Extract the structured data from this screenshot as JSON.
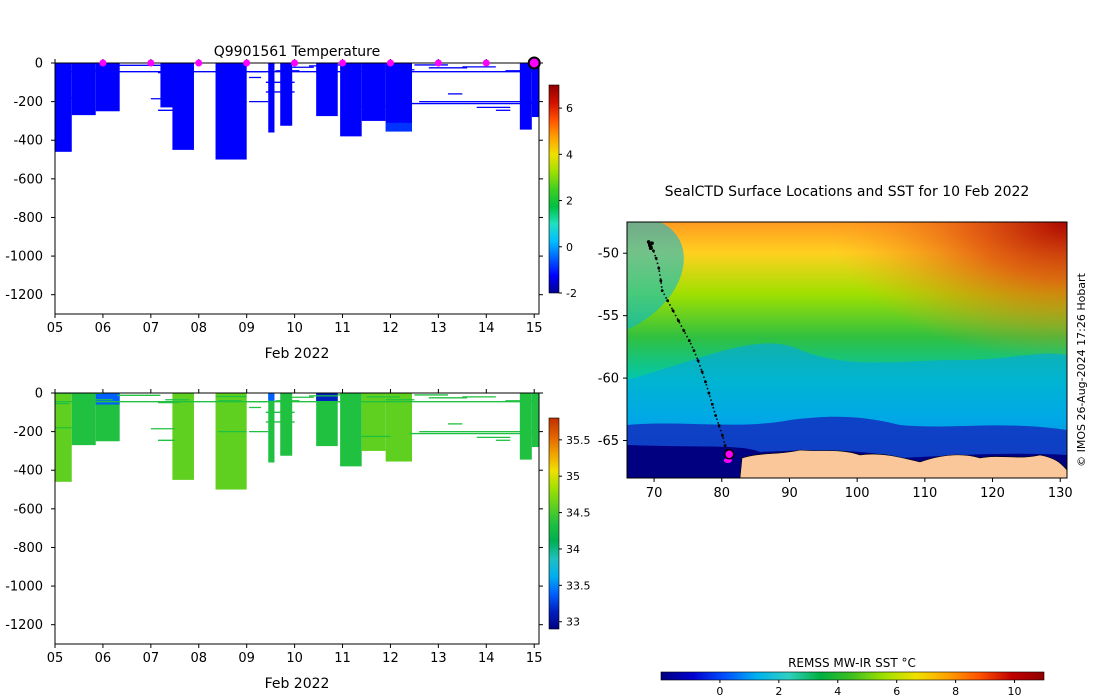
{
  "colors": {
    "temp_profile": "#00008f",
    "station_marker": "#ff00ff",
    "track": "#000000",
    "land": "#f9c79a",
    "current_pos_outline": "#000000"
  },
  "chart_data": [
    {
      "id": "temperature",
      "type": "heatmap",
      "title": "Q9901561  Temperature",
      "xlabel": "Feb 2022",
      "ylabel": "",
      "xlim": [
        5,
        15.1
      ],
      "ylim": [
        -1300,
        0
      ],
      "xticks": [
        5,
        6,
        7,
        8,
        9,
        10,
        11,
        12,
        13,
        14,
        15
      ],
      "xtick_labels": [
        "05",
        "06",
        "07",
        "08",
        "09",
        "10",
        "11",
        "12",
        "13",
        "14",
        "15"
      ],
      "yticks": [
        0,
        -200,
        -400,
        -600,
        -800,
        -1000,
        -1200
      ],
      "ytick_labels": [
        "0",
        "-200",
        "-400",
        "-600",
        "-800",
        "-1000",
        "-1200"
      ],
      "colorbar": {
        "range": [
          -2,
          7
        ],
        "ticks": [
          -2,
          0,
          2,
          4,
          6
        ],
        "tick_labels": [
          "-2",
          "0",
          "2",
          "4",
          "6"
        ]
      },
      "profiles": [
        {
          "x0": 5.0,
          "x1": 5.35,
          "depth": 460,
          "value": -1.6
        },
        {
          "x0": 5.35,
          "x1": 5.85,
          "depth": 270,
          "value": -1.6
        },
        {
          "x0": 5.85,
          "x1": 6.35,
          "depth": 250,
          "value": -1.6
        },
        {
          "x0": 7.2,
          "x1": 7.55,
          "depth": 230,
          "value": -1.6
        },
        {
          "x0": 7.45,
          "x1": 7.9,
          "depth": 450,
          "value": -1.6
        },
        {
          "x0": 8.35,
          "x1": 9.0,
          "depth": 500,
          "value": -1.6
        },
        {
          "x0": 9.45,
          "x1": 9.58,
          "depth": 360,
          "value": -1.6
        },
        {
          "x0": 9.7,
          "x1": 9.95,
          "depth": 325,
          "value": -1.6
        },
        {
          "x0": 10.45,
          "x1": 10.9,
          "depth": 275,
          "value": -1.6
        },
        {
          "x0": 10.95,
          "x1": 11.4,
          "depth": 380,
          "value": -1.6
        },
        {
          "x0": 11.4,
          "x1": 11.9,
          "depth": 300,
          "value": -1.6
        },
        {
          "x0": 11.9,
          "x1": 12.45,
          "depth": 355,
          "value": -1.3
        },
        {
          "x0": 14.7,
          "x1": 14.95,
          "depth": 345,
          "value": -1.6
        },
        {
          "x0": 14.95,
          "x1": 15.1,
          "depth": 280,
          "value": -1.6
        }
      ],
      "station_markers": [
        6,
        7,
        8,
        9,
        10,
        11,
        12,
        13,
        14
      ],
      "current_marker": 15
    },
    {
      "id": "salinity",
      "type": "heatmap",
      "title": "",
      "xlabel": "Feb 2022",
      "ylabel": "",
      "xlim": [
        5,
        15.1
      ],
      "ylim": [
        -1300,
        0
      ],
      "xticks": [
        5,
        6,
        7,
        8,
        9,
        10,
        11,
        12,
        13,
        14,
        15
      ],
      "xtick_labels": [
        "05",
        "06",
        "07",
        "08",
        "09",
        "10",
        "11",
        "12",
        "13",
        "14",
        "15"
      ],
      "yticks": [
        0,
        -200,
        -400,
        -600,
        -800,
        -1000,
        -1200
      ],
      "ytick_labels": [
        "0",
        "-200",
        "-400",
        "-600",
        "-800",
        "-1000",
        "-1200"
      ],
      "colorbar": {
        "range": [
          32.9,
          35.8
        ],
        "ticks": [
          33,
          33.5,
          34,
          34.5,
          35,
          35.5
        ],
        "tick_labels": [
          "33",
          "33.5",
          "34",
          "34.5",
          "35",
          "35.5"
        ]
      },
      "profiles": [
        {
          "x0": 5.0,
          "x1": 5.35,
          "depth": 460,
          "value": 34.55
        },
        {
          "x0": 5.35,
          "x1": 5.85,
          "depth": 270,
          "value": 34.45
        },
        {
          "x0": 5.85,
          "x1": 6.35,
          "depth": 250,
          "value": 34.45
        },
        {
          "x0": 7.45,
          "x1": 7.9,
          "depth": 450,
          "value": 34.55
        },
        {
          "x0": 8.35,
          "x1": 9.0,
          "depth": 500,
          "value": 34.65
        },
        {
          "x0": 9.45,
          "x1": 9.58,
          "depth": 360,
          "value": 34.35
        },
        {
          "x0": 9.7,
          "x1": 9.95,
          "depth": 325,
          "value": 34.4
        },
        {
          "x0": 10.45,
          "x1": 10.9,
          "depth": 275,
          "value": 34.35
        },
        {
          "x0": 10.95,
          "x1": 11.4,
          "depth": 380,
          "value": 34.45
        },
        {
          "x0": 11.4,
          "x1": 11.9,
          "depth": 300,
          "value": 34.5
        },
        {
          "x0": 11.9,
          "x1": 12.45,
          "depth": 355,
          "value": 34.55
        },
        {
          "x0": 14.7,
          "x1": 14.95,
          "depth": 345,
          "value": 34.45
        },
        {
          "x0": 14.95,
          "x1": 15.1,
          "depth": 280,
          "value": 34.4
        }
      ],
      "surface_fresh_layers": [
        {
          "x0": 5.85,
          "x1": 6.35,
          "depth": 60,
          "value": 33.3
        },
        {
          "x0": 9.45,
          "x1": 9.58,
          "depth": 40,
          "value": 33.3
        },
        {
          "x0": 10.45,
          "x1": 10.9,
          "depth": 45,
          "value": 33.2
        }
      ]
    },
    {
      "id": "sst_map",
      "type": "heatmap",
      "title": "SealCTD Surface Locations and SST for 10 Feb 2022",
      "xlabel": "",
      "ylabel": "",
      "xlim": [
        66,
        131
      ],
      "ylim": [
        -68,
        -47.5
      ],
      "xticks": [
        70,
        80,
        90,
        100,
        110,
        120,
        130
      ],
      "xtick_labels": [
        "70",
        "80",
        "90",
        "100",
        "110",
        "120",
        "130"
      ],
      "yticks": [
        -50,
        -55,
        -60,
        -65
      ],
      "ytick_labels": [
        "-50",
        "-55",
        "-60",
        "-65"
      ],
      "colorbar_label": "REMSS MW-IR SST °C",
      "colorbar": {
        "range": [
          -2,
          11
        ],
        "ticks": [
          0,
          2,
          4,
          6,
          8,
          10
        ],
        "tick_labels": [
          "0",
          "2",
          "4",
          "6",
          "8",
          "10"
        ]
      },
      "track": [
        [
          69.3,
          -49.3
        ],
        [
          69.6,
          -49.5
        ],
        [
          69.9,
          -49.8
        ],
        [
          70.3,
          -50.4
        ],
        [
          70.7,
          -51.2
        ],
        [
          71.0,
          -52.2
        ],
        [
          71.2,
          -53.0
        ],
        [
          72.0,
          -53.8
        ],
        [
          72.8,
          -54.6
        ],
        [
          73.6,
          -55.4
        ],
        [
          74.4,
          -56.2
        ],
        [
          75.2,
          -57.0
        ],
        [
          75.9,
          -57.8
        ],
        [
          76.5,
          -58.6
        ],
        [
          77.1,
          -59.5
        ],
        [
          77.6,
          -60.3
        ],
        [
          78.1,
          -61.2
        ],
        [
          78.6,
          -62.1
        ],
        [
          79.1,
          -63.0
        ],
        [
          79.6,
          -63.8
        ],
        [
          80.1,
          -64.6
        ],
        [
          80.5,
          -65.4
        ],
        [
          80.7,
          -65.9
        ],
        [
          80.9,
          -66.3
        ]
      ],
      "current_position": [
        81.1,
        -66.1
      ],
      "recent_positions": [
        [
          80.9,
          -66.6
        ]
      ]
    }
  ],
  "watermark": "© IMOS 26-Aug-2024 17:26 Hobart"
}
